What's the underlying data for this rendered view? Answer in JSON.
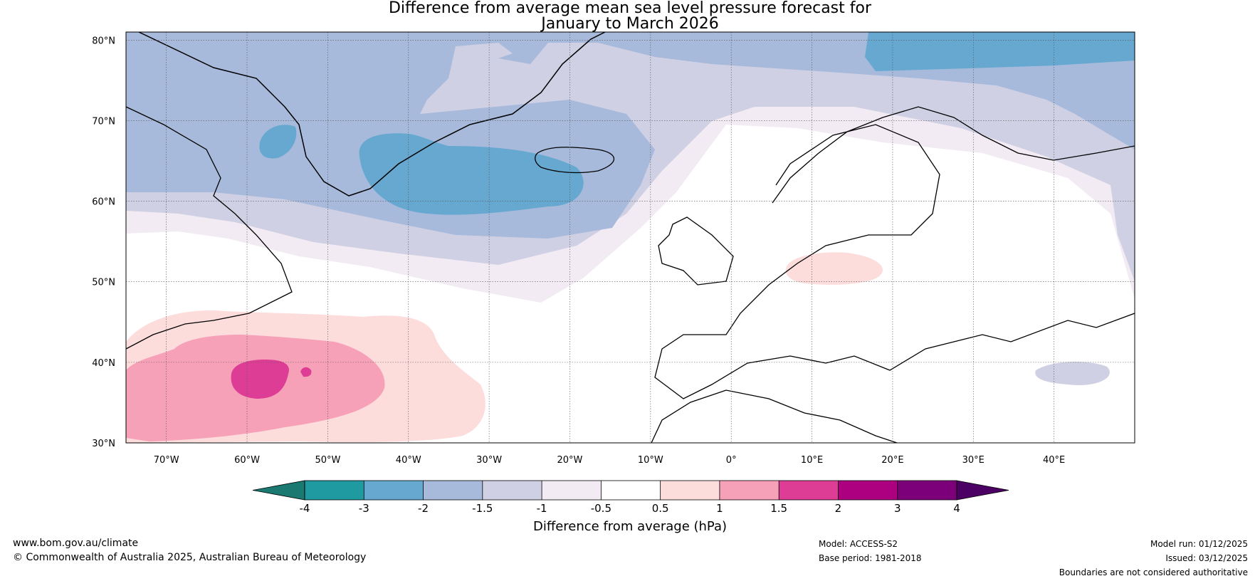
{
  "title": {
    "line1": "Difference from average mean sea level pressure forecast for",
    "line2": "January to March 2026"
  },
  "map": {
    "lat_ticks": [
      "80°N",
      "70°N",
      "60°N",
      "50°N",
      "40°N",
      "30°N"
    ],
    "lon_ticks": [
      "70°W",
      "60°W",
      "50°W",
      "40°W",
      "30°W",
      "20°W",
      "10°W",
      "0°",
      "10°E",
      "20°E",
      "30°E",
      "40°E"
    ],
    "lat_range": [
      30,
      81
    ],
    "lon_range": [
      -75,
      50
    ]
  },
  "colorbar": {
    "label": "Difference from average (hPa)",
    "tick_labels": [
      "-4",
      "-3",
      "-2",
      "-1.5",
      "-1",
      "-0.5",
      "0.5",
      "1",
      "1.5",
      "2",
      "3",
      "4"
    ],
    "colors": [
      "#1a7a72",
      "#1f9aa0",
      "#66a8d0",
      "#a7badb",
      "#d0d0e4",
      "#f2ebf3",
      "#ffffff",
      "#fddcdc",
      "#f7a1b8",
      "#de3d96",
      "#ad0080",
      "#7b007a",
      "#4c0064"
    ]
  },
  "footer": {
    "website": "www.bom.gov.au/climate",
    "copyright": "© Commonwealth of Australia 2025, Australian Bureau of Meteorology",
    "model": "Model: ACCESS-S2",
    "base_period": "Base period: 1981-2018",
    "model_run": "Model run: 01/12/2025",
    "issued": "Issued: 03/12/2025",
    "disclaimer": "Boundaries are not considered authoritative"
  }
}
